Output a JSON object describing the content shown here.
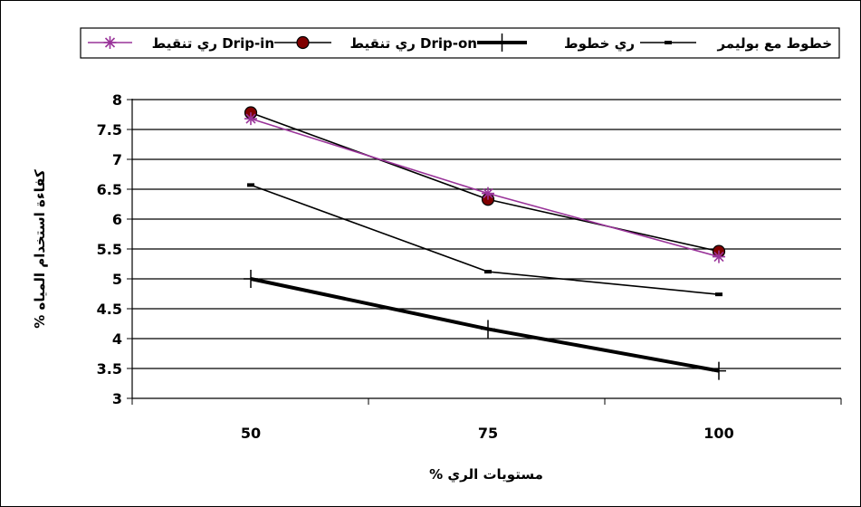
{
  "chart_data": {
    "type": "line",
    "categories": [
      "50",
      "75",
      "100"
    ],
    "xlabel": "مستويات الري %",
    "ylabel": "كفاءة استخدام المياه %",
    "ylim": [
      3,
      8
    ],
    "yticks": [
      "3",
      "3.5",
      "4",
      "4.5",
      "5",
      "5.5",
      "6",
      "6.5",
      "7",
      "7.5",
      "8"
    ],
    "grid": "horizontal",
    "legend_position": "top",
    "series": [
      {
        "name": "ري تنقيط Drip-in",
        "values": [
          7.68,
          6.43,
          5.37
        ],
        "color": "#993399",
        "marker": "star",
        "line": "thin"
      },
      {
        "name": "ري تنقيط Drip-on",
        "values": [
          7.78,
          6.33,
          5.46
        ],
        "color": "#000000",
        "marker": "circle",
        "marker_fill": "#800000",
        "line": "thin"
      },
      {
        "name": "ري خطوط",
        "values": [
          5.0,
          4.16,
          3.46
        ],
        "color": "#000000",
        "marker": "plus",
        "line": "thick"
      },
      {
        "name": "خطوط مع بوليمر",
        "values": [
          6.57,
          5.12,
          4.74
        ],
        "color": "#000000",
        "marker": "dash",
        "line": "thin"
      }
    ]
  }
}
